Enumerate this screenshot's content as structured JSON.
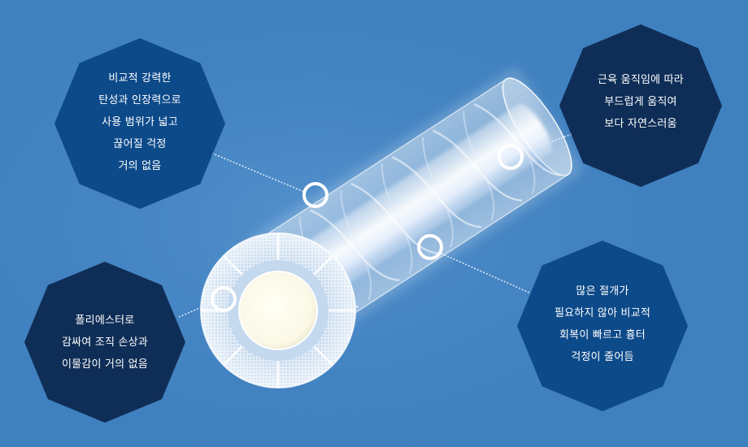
{
  "colors": {
    "background": "#3f80bf",
    "callout_dark": "#0f2e57",
    "callout_mid": "#0d4a8a",
    "marker_ring": "#ffffff"
  },
  "callouts": {
    "top_left": {
      "lines": [
        "비교적 강력한",
        "탄성과 인장력으로",
        "사용 범위가 넓고",
        "끊어질 걱정",
        "거의 없음"
      ]
    },
    "top_right": {
      "lines": [
        "근육 움직임에 따라",
        "부드럽게 움직여",
        "보다 자연스러움"
      ]
    },
    "bottom_left": {
      "lines": [
        "폴리에스터로",
        "감싸여 조직 손상과",
        "이물감이 거의 없음"
      ]
    },
    "bottom_right": {
      "lines": [
        "많은 절개가",
        "필요하지 않아 비교적",
        "회복이 빠르고 흉터",
        "걱정이 줄어듬"
      ]
    }
  }
}
